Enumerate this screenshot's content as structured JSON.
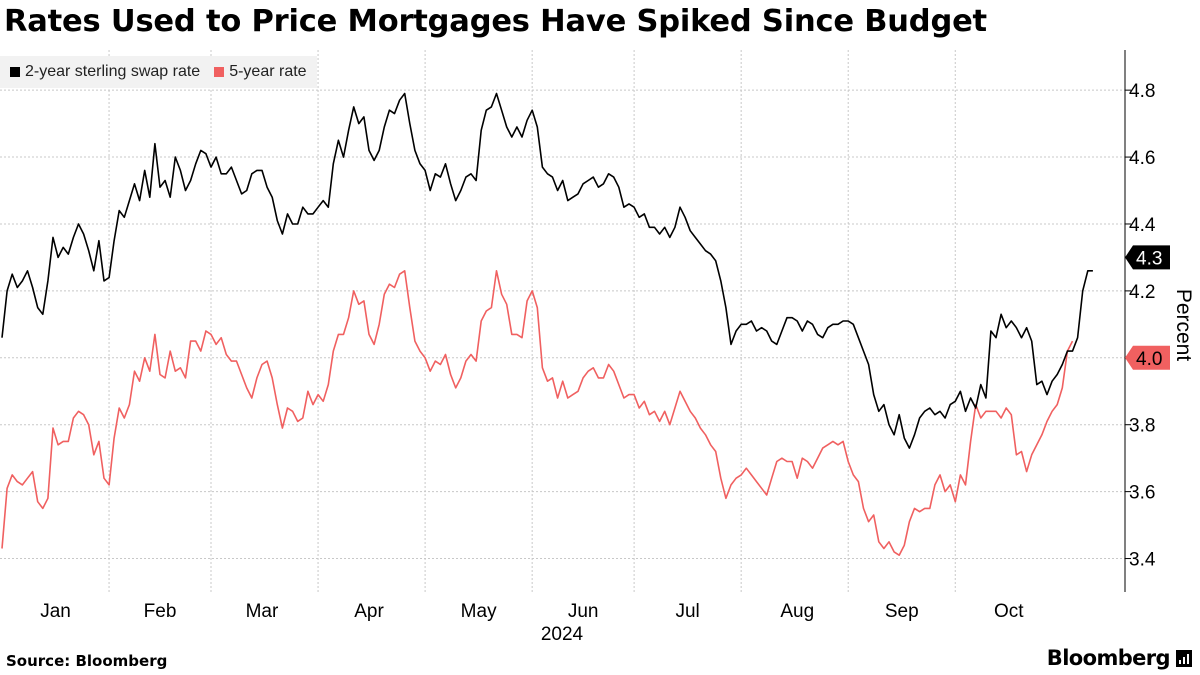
{
  "title": "Rates Used to Price Mortgages Have Spiked Since Budget",
  "source": "Source: Bloomberg",
  "brand": "Bloomberg",
  "chart_data": {
    "type": "line",
    "title": "Rates Used to Price Mortgages Have Spiked Since Budget",
    "ylabel": "Percent",
    "xlabel": "2024",
    "ylim": [
      3.3,
      4.92
    ],
    "yticks": [
      3.4,
      3.6,
      3.8,
      4.0,
      4.2,
      4.4,
      4.6,
      4.8
    ],
    "xlim": [
      0,
      215
    ],
    "grid": true,
    "months": [
      {
        "label": "Jan",
        "start": 0,
        "mid": 10.5
      },
      {
        "label": "Feb",
        "start": 21,
        "mid": 31
      },
      {
        "label": "Mar",
        "start": 41,
        "mid": 51
      },
      {
        "label": "Apr",
        "start": 62,
        "mid": 72
      },
      {
        "label": "May",
        "start": 83,
        "mid": 93.5
      },
      {
        "label": "Jun",
        "start": 104,
        "mid": 114
      },
      {
        "label": "Jul",
        "start": 124,
        "mid": 134.5
      },
      {
        "label": "Aug",
        "start": 145,
        "mid": 156
      },
      {
        "label": "Sep",
        "start": 166,
        "mid": 176.5
      },
      {
        "label": "Oct",
        "start": 187,
        "mid": 197.5
      }
    ],
    "year_label": "2024",
    "series": [
      {
        "name": "2-year sterling swap rate",
        "color": "#000000",
        "last_value": "4.3",
        "values": [
          4.06,
          4.2,
          4.25,
          4.21,
          4.23,
          4.26,
          4.21,
          4.15,
          4.13,
          4.23,
          4.36,
          4.3,
          4.33,
          4.31,
          4.36,
          4.4,
          4.37,
          4.32,
          4.26,
          4.35,
          4.23,
          4.24,
          4.35,
          4.44,
          4.42,
          4.47,
          4.52,
          4.47,
          4.56,
          4.48,
          4.64,
          4.51,
          4.53,
          4.48,
          4.6,
          4.56,
          4.5,
          4.53,
          4.58,
          4.62,
          4.61,
          4.57,
          4.6,
          4.55,
          4.55,
          4.57,
          4.53,
          4.49,
          4.5,
          4.55,
          4.56,
          4.56,
          4.51,
          4.48,
          4.41,
          4.37,
          4.43,
          4.4,
          4.4,
          4.45,
          4.43,
          4.43,
          4.45,
          4.47,
          4.45,
          4.58,
          4.65,
          4.6,
          4.68,
          4.75,
          4.7,
          4.72,
          4.62,
          4.59,
          4.62,
          4.69,
          4.74,
          4.73,
          4.77,
          4.79,
          4.7,
          4.62,
          4.58,
          4.56,
          4.5,
          4.55,
          4.54,
          4.58,
          4.52,
          4.47,
          4.5,
          4.54,
          4.55,
          4.53,
          4.68,
          4.74,
          4.75,
          4.79,
          4.74,
          4.69,
          4.66,
          4.69,
          4.66,
          4.71,
          4.74,
          4.69,
          4.57,
          4.55,
          4.54,
          4.5,
          4.53,
          4.47,
          4.48,
          4.49,
          4.52,
          4.53,
          4.54,
          4.51,
          4.52,
          4.55,
          4.54,
          4.51,
          4.45,
          4.46,
          4.45,
          4.42,
          4.43,
          4.39,
          4.39,
          4.37,
          4.39,
          4.36,
          4.39,
          4.45,
          4.42,
          4.38,
          4.36,
          4.34,
          4.32,
          4.31,
          4.29,
          4.23,
          4.15,
          4.04,
          4.08,
          4.1,
          4.1,
          4.11,
          4.08,
          4.09,
          4.08,
          4.05,
          4.04,
          4.08,
          4.12,
          4.12,
          4.11,
          4.08,
          4.11,
          4.1,
          4.07,
          4.06,
          4.09,
          4.1,
          4.1,
          4.11,
          4.11,
          4.1,
          4.06,
          4.02,
          3.98,
          3.89,
          3.84,
          3.86,
          3.8,
          3.77,
          3.83,
          3.76,
          3.73,
          3.77,
          3.82,
          3.84,
          3.85,
          3.83,
          3.84,
          3.82,
          3.86,
          3.87,
          3.9,
          3.84,
          3.88,
          3.85,
          3.92,
          3.88,
          4.08,
          4.06,
          4.13,
          4.09,
          4.11,
          4.09,
          4.06,
          4.09,
          4.05,
          3.92,
          3.93,
          3.89,
          3.93,
          3.95,
          3.98,
          4.02,
          4.02,
          4.06,
          4.2,
          4.26,
          4.26
        ]
      },
      {
        "name": "5-year rate",
        "color": "#f06060",
        "last_value": "4.0",
        "values": [
          3.43,
          3.61,
          3.65,
          3.63,
          3.62,
          3.64,
          3.66,
          3.57,
          3.55,
          3.58,
          3.79,
          3.74,
          3.75,
          3.75,
          3.82,
          3.84,
          3.83,
          3.8,
          3.71,
          3.75,
          3.64,
          3.62,
          3.76,
          3.85,
          3.82,
          3.86,
          3.96,
          3.93,
          4.0,
          3.96,
          4.07,
          3.95,
          3.94,
          4.02,
          3.96,
          3.97,
          3.94,
          4.05,
          4.05,
          4.02,
          4.08,
          4.07,
          4.04,
          4.06,
          4.01,
          3.99,
          3.99,
          3.95,
          3.91,
          3.88,
          3.94,
          3.98,
          3.99,
          3.94,
          3.86,
          3.79,
          3.85,
          3.84,
          3.81,
          3.82,
          3.9,
          3.86,
          3.89,
          3.87,
          3.92,
          4.02,
          4.07,
          4.07,
          4.12,
          4.2,
          4.16,
          4.17,
          4.07,
          4.04,
          4.1,
          4.19,
          4.22,
          4.21,
          4.25,
          4.26,
          4.15,
          4.05,
          4.02,
          4.0,
          3.96,
          3.99,
          3.98,
          4.01,
          3.95,
          3.91,
          3.94,
          3.99,
          4.01,
          3.99,
          4.11,
          4.14,
          4.15,
          4.26,
          4.19,
          4.16,
          4.07,
          4.07,
          4.06,
          4.17,
          4.2,
          4.15,
          3.97,
          3.93,
          3.94,
          3.88,
          3.93,
          3.88,
          3.89,
          3.9,
          3.94,
          3.96,
          3.97,
          3.94,
          3.94,
          3.98,
          3.96,
          3.92,
          3.88,
          3.89,
          3.89,
          3.85,
          3.87,
          3.83,
          3.84,
          3.81,
          3.84,
          3.8,
          3.85,
          3.9,
          3.87,
          3.84,
          3.82,
          3.79,
          3.77,
          3.74,
          3.72,
          3.64,
          3.58,
          3.62,
          3.64,
          3.65,
          3.67,
          3.65,
          3.63,
          3.61,
          3.59,
          3.64,
          3.69,
          3.7,
          3.69,
          3.69,
          3.64,
          3.7,
          3.69,
          3.67,
          3.7,
          3.73,
          3.74,
          3.75,
          3.74,
          3.75,
          3.69,
          3.65,
          3.63,
          3.55,
          3.51,
          3.53,
          3.45,
          3.43,
          3.45,
          3.42,
          3.41,
          3.44,
          3.51,
          3.55,
          3.54,
          3.55,
          3.55,
          3.62,
          3.65,
          3.6,
          3.62,
          3.57,
          3.65,
          3.62,
          3.75,
          3.86,
          3.82,
          3.84,
          3.84,
          3.84,
          3.82,
          3.85,
          3.83,
          3.71,
          3.72,
          3.66,
          3.71,
          3.74,
          3.77,
          3.81,
          3.84,
          3.86,
          3.91,
          4.02,
          4.05
        ]
      }
    ]
  }
}
